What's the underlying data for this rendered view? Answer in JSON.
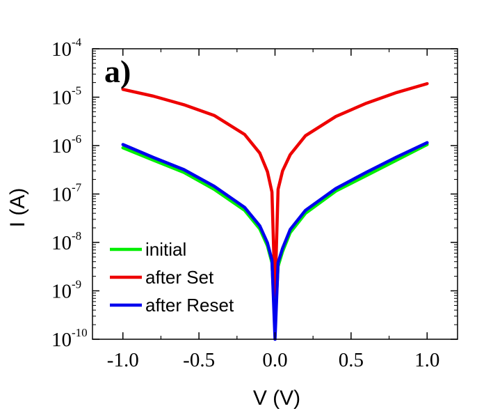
{
  "chart_data": {
    "type": "line",
    "panel_label": "a)",
    "xlabel": "V (V)",
    "ylabel": "I (A)",
    "xlim": [
      -1.2,
      1.2
    ],
    "ylim_log10": [
      -10,
      -4
    ],
    "y_scale": "log",
    "x_ticks": [
      -1.0,
      -0.5,
      0.0,
      0.5,
      1.0
    ],
    "x_tick_labels": [
      "-1.0",
      "-0.5",
      "0.0",
      "0.5",
      "1.0"
    ],
    "y_ticks": [
      {
        "base": "10",
        "exp": "-4"
      },
      {
        "base": "10",
        "exp": "-5"
      },
      {
        "base": "10",
        "exp": "-6"
      },
      {
        "base": "10",
        "exp": "-7"
      },
      {
        "base": "10",
        "exp": "-8"
      },
      {
        "base": "10",
        "exp": "-9"
      },
      {
        "base": "10",
        "exp": "-10"
      }
    ],
    "legend": {
      "placement": "bottom-left"
    },
    "series": [
      {
        "name": "initial",
        "color": "#00ee00",
        "x": [
          -1.0,
          -0.8,
          -0.6,
          -0.4,
          -0.2,
          -0.1,
          -0.05,
          -0.02,
          0.0,
          0.02,
          0.05,
          0.1,
          0.2,
          0.4,
          0.6,
          0.8,
          1.0
        ],
        "y": [
          9e-07,
          5e-07,
          2.8e-07,
          1.25e-07,
          4.6e-08,
          1.9e-08,
          8.5e-09,
          3.8e-09,
          2e-10,
          3.2e-09,
          6.5e-09,
          1.6e-08,
          4e-08,
          1.15e-07,
          2.4e-07,
          5e-07,
          1.05e-06
        ]
      },
      {
        "name": "after Set",
        "color": "#ee0000",
        "x": [
          -1.0,
          -0.8,
          -0.6,
          -0.4,
          -0.2,
          -0.1,
          -0.05,
          -0.02,
          0.0,
          0.02,
          0.05,
          0.1,
          0.2,
          0.4,
          0.6,
          0.8,
          1.0
        ],
        "y": [
          1.45e-05,
          1.05e-05,
          7e-06,
          4.2e-06,
          1.7e-06,
          7e-07,
          2.9e-07,
          1.1e-07,
          8e-10,
          1.25e-07,
          3e-07,
          6.5e-07,
          1.6e-06,
          4e-06,
          7.5e-06,
          1.25e-05,
          1.9e-05
        ]
      },
      {
        "name": "after Reset",
        "color": "#0000ee",
        "x": [
          -1.0,
          -0.8,
          -0.6,
          -0.4,
          -0.2,
          -0.1,
          -0.05,
          -0.02,
          0.0,
          0.02,
          0.05,
          0.1,
          0.2,
          0.4,
          0.6,
          0.8,
          1.0
        ],
        "y": [
          1.05e-06,
          5.7e-07,
          3.2e-07,
          1.45e-07,
          5.3e-08,
          2.2e-08,
          9.8e-09,
          4.3e-09,
          1e-10,
          3.8e-09,
          7.6e-09,
          1.85e-08,
          4.6e-08,
          1.3e-07,
          2.8e-07,
          5.8e-07,
          1.15e-06
        ]
      }
    ]
  }
}
